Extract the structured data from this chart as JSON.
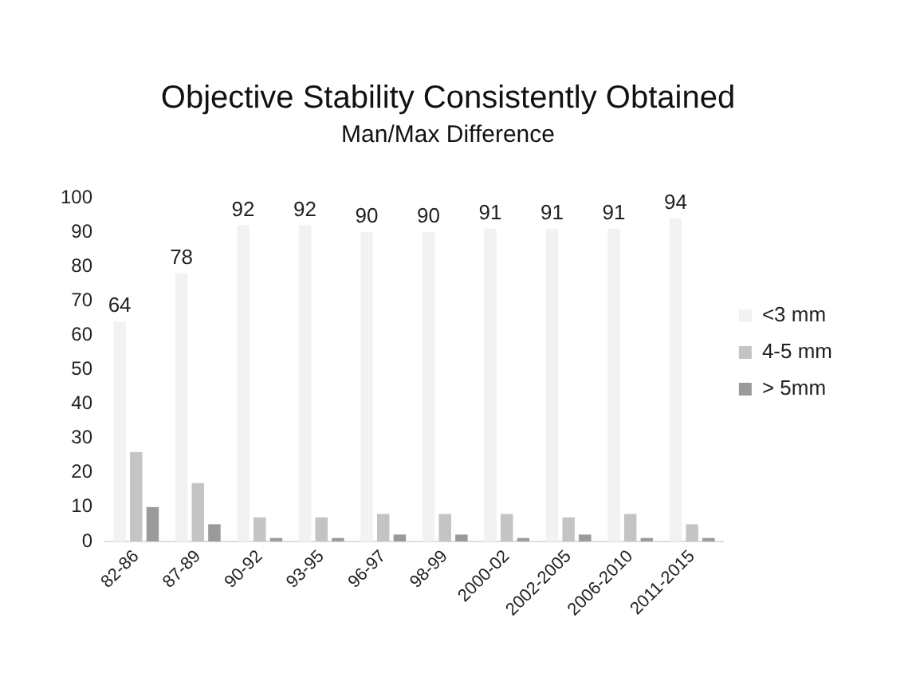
{
  "chart_data": {
    "type": "bar",
    "title": "Objective Stability Consistently Obtained",
    "subtitle": "Man/Max Difference",
    "categories": [
      "82-86",
      "87-89",
      "90-92",
      "93-95",
      "96-97",
      "98-99",
      "2000-02",
      "2002-2005",
      "2006-2010",
      "2011-2015"
    ],
    "series": [
      {
        "name": "<3 mm",
        "color": "#f2f2f2",
        "values": [
          64,
          78,
          92,
          92,
          90,
          90,
          91,
          91,
          91,
          94
        ],
        "value_labels": [
          "64",
          "78",
          "92",
          "92",
          "90",
          "90",
          "91",
          "91",
          "91",
          "94"
        ]
      },
      {
        "name": "4-5 mm",
        "color": "#c4c4c4",
        "values": [
          26,
          17,
          7,
          7,
          8,
          8,
          8,
          7,
          8,
          5
        ]
      },
      {
        "name": "> 5mm",
        "color": "#9a9a9a",
        "values": [
          10,
          5,
          1,
          1,
          2,
          2,
          1,
          2,
          1,
          1
        ]
      }
    ],
    "ylim": [
      0,
      100
    ],
    "yticks": [
      0,
      10,
      20,
      30,
      40,
      50,
      60,
      70,
      80,
      90,
      100
    ],
    "grid": false,
    "legend": "right"
  }
}
